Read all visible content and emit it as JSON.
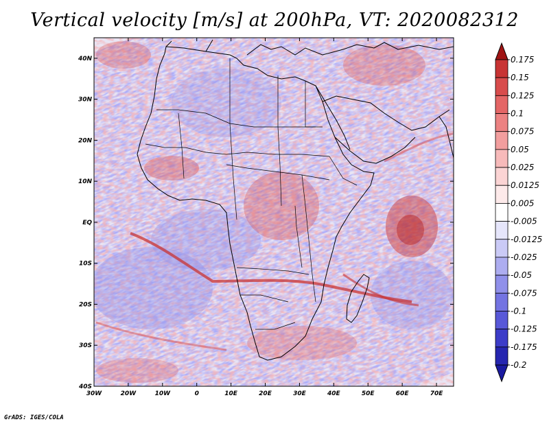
{
  "title": "Vertical velocity [m/s] at 200hPa, VT: 2020082312",
  "footer": "GrADS: IGES/COLA",
  "map": {
    "region": "Africa",
    "lon_range": [
      -30,
      75
    ],
    "lat_range": [
      -40,
      45
    ],
    "x_ticks": [
      {
        "lon": -30,
        "label": "30W"
      },
      {
        "lon": -20,
        "label": "20W"
      },
      {
        "lon": -10,
        "label": "10W"
      },
      {
        "lon": 0,
        "label": "0"
      },
      {
        "lon": 10,
        "label": "10E"
      },
      {
        "lon": 20,
        "label": "20E"
      },
      {
        "lon": 30,
        "label": "30E"
      },
      {
        "lon": 40,
        "label": "40E"
      },
      {
        "lon": 50,
        "label": "50E"
      },
      {
        "lon": 60,
        "label": "60E"
      },
      {
        "lon": 70,
        "label": "70E"
      }
    ],
    "y_ticks": [
      {
        "lat": 40,
        "label": "40N"
      },
      {
        "lat": 30,
        "label": "30N"
      },
      {
        "lat": 20,
        "label": "20N"
      },
      {
        "lat": 10,
        "label": "10N"
      },
      {
        "lat": 0,
        "label": "EQ"
      },
      {
        "lat": -10,
        "label": "10S"
      },
      {
        "lat": -20,
        "label": "20S"
      },
      {
        "lat": -30,
        "label": "30S"
      },
      {
        "lat": -40,
        "label": "40S"
      }
    ]
  },
  "colorbar": {
    "levels": [
      {
        "label": "0.175",
        "color": "#b41c1c"
      },
      {
        "label": "0.15",
        "color": "#c83434"
      },
      {
        "label": "0.125",
        "color": "#d84c4c"
      },
      {
        "label": "0.1",
        "color": "#e46666"
      },
      {
        "label": "0.075",
        "color": "#ec8282"
      },
      {
        "label": "0.05",
        "color": "#f29e9e"
      },
      {
        "label": "0.025",
        "color": "#f7baba"
      },
      {
        "label": "0.0125",
        "color": "#fbd4d4"
      },
      {
        "label": "0.005",
        "color": "#fdeaea"
      },
      {
        "label": "-0.005",
        "color": "#ffffff"
      },
      {
        "label": "-0.0125",
        "color": "#e6e6fb"
      },
      {
        "label": "-0.025",
        "color": "#cacaf6"
      },
      {
        "label": "-0.05",
        "color": "#adadf0"
      },
      {
        "label": "-0.075",
        "color": "#9090ea"
      },
      {
        "label": "-0.1",
        "color": "#7474e2"
      },
      {
        "label": "-0.125",
        "color": "#5858d8"
      },
      {
        "label": "-0.175",
        "color": "#3c3cc8"
      },
      {
        "label": "-0.2",
        "color": "#2626b0"
      }
    ],
    "top_arrow_color": "#a01414",
    "bottom_arrow_color": "#1a1aa0"
  }
}
